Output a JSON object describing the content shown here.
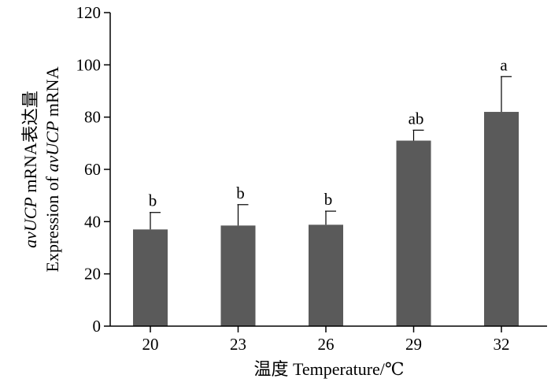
{
  "chart_data": {
    "type": "bar",
    "categories": [
      "20",
      "23",
      "26",
      "29",
      "32"
    ],
    "values": [
      37,
      38.5,
      38.8,
      71,
      82
    ],
    "error_upper": [
      43.5,
      46.5,
      44,
      75,
      95.5
    ],
    "significance": [
      "b",
      "b",
      "b",
      "ab",
      "a"
    ],
    "xlabel": "温度  Temperature/℃",
    "ylabel": {
      "line1": {
        "italic": "avUCP",
        "rest": " mRNA表达量"
      },
      "line2": {
        "pre": "Expression of ",
        "italic": "avUCP",
        "post": " mRNA"
      }
    },
    "ylim": [
      0,
      120
    ],
    "yticks": [
      0,
      20,
      40,
      60,
      80,
      100,
      120
    ],
    "bar_color": "#5a5a5a",
    "grid": false
  }
}
